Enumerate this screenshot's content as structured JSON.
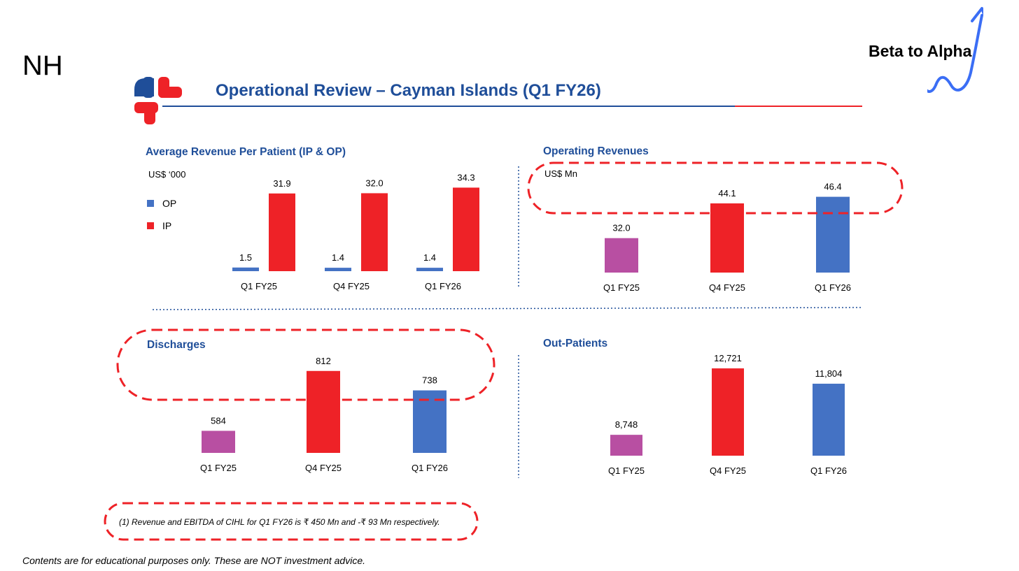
{
  "ticker": "NH",
  "brand_text": "Beta to Alpha",
  "page_title": "Operational Review – Cayman Islands  (Q1 FY26)",
  "colors": {
    "title_blue": "#1f4e99",
    "op_blue": "#4472c4",
    "ip_red": "#ee2227",
    "q1fy25_purple": "#b84fa2",
    "annotation_red": "#ee2227",
    "brand_arrow": "#3b6ef5"
  },
  "chart_data": [
    {
      "id": "arpp",
      "type": "bar",
      "title": "Average Revenue Per Patient (IP & OP)",
      "unit_label": "US$ ‘000",
      "categories": [
        "Q1 FY25",
        "Q4 FY25",
        "Q1 FY26"
      ],
      "series": [
        {
          "name": "OP",
          "values": [
            1.5,
            1.4,
            1.4
          ],
          "labels": [
            "1.5",
            "1.4",
            "1.4"
          ],
          "color": "#4472c4"
        },
        {
          "name": "IP",
          "values": [
            31.9,
            32.0,
            34.3
          ],
          "labels": [
            "31.9",
            "32.0",
            "34.3"
          ],
          "color": "#ee2227"
        }
      ],
      "legend": [
        "OP",
        "IP"
      ],
      "ylim": [
        0,
        35
      ]
    },
    {
      "id": "oprev",
      "type": "bar",
      "title": "Operating Revenues",
      "unit_label": "US$ Mn",
      "categories": [
        "Q1 FY25",
        "Q4 FY25",
        "Q1 FY26"
      ],
      "values": [
        32.0,
        44.1,
        46.4
      ],
      "labels": [
        "32.0",
        "44.1",
        "46.4"
      ],
      "colors": [
        "#b84fa2",
        "#ee2227",
        "#4472c4"
      ],
      "ylim": [
        20,
        48
      ]
    },
    {
      "id": "discharges",
      "type": "bar",
      "title": "Discharges",
      "categories": [
        "Q1 FY25",
        "Q4 FY25",
        "Q1 FY26"
      ],
      "values": [
        584,
        812,
        738
      ],
      "labels": [
        "584",
        "812",
        "738"
      ],
      "colors": [
        "#b84fa2",
        "#ee2227",
        "#4472c4"
      ],
      "ylim": [
        500,
        830
      ]
    },
    {
      "id": "outpatients",
      "type": "bar",
      "title": "Out-Patients",
      "categories": [
        "Q1 FY25",
        "Q4 FY25",
        "Q1 FY26"
      ],
      "values": [
        8748,
        12721,
        11804
      ],
      "labels": [
        "8,748",
        "12,721",
        "11,804"
      ],
      "colors": [
        "#b84fa2",
        "#ee2227",
        "#4472c4"
      ],
      "ylim": [
        7500,
        12850
      ]
    }
  ],
  "footnote": "(1)  Revenue and EBITDA of CIHL for Q1 FY26 is ₹ 450 Mn and -₹ 93 Mn respectively.",
  "disclaimer": "Contents are for educational purposes only. These are NOT investment advice."
}
